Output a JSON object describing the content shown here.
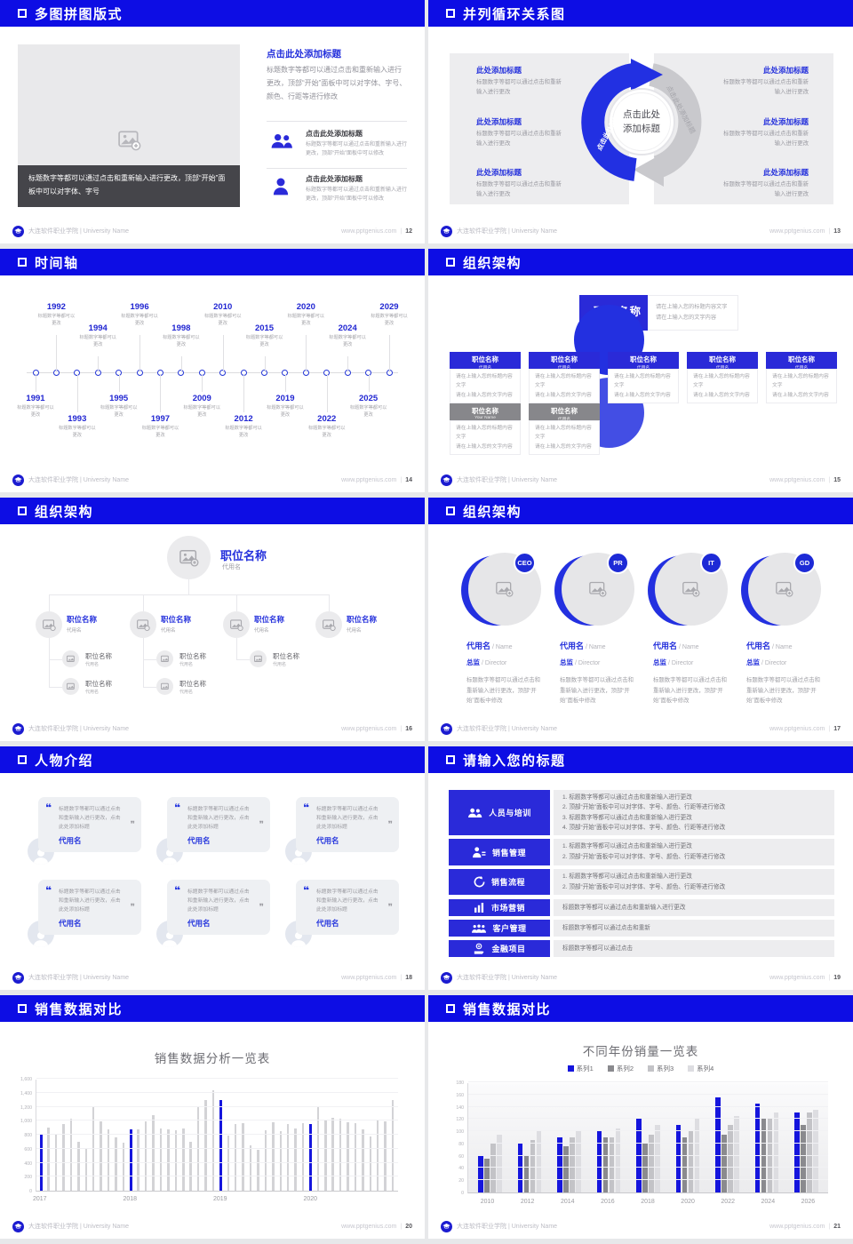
{
  "footer": {
    "brand": "大连软件职业学院 | University Name",
    "site": "www.pptgenius.com",
    "sep": "|"
  },
  "colors": {
    "header_blue": "#0d0de4",
    "accent_blue": "#2430dc",
    "box_blue": "#2a2ad8",
    "chart_blue": "#1515dd"
  },
  "slides": {
    "s12": {
      "title": "多图拼图版式",
      "page": "12",
      "caption": "标题数字等都可以通过点击和重新输入进行更改，顶部“开始”面板中可以对字体、字号",
      "right_title": "点击此处添加标题",
      "right_body": "标题数字等都可以通过点击和重新输入进行更改，顶部“开始”面板中可以对字体、字号、颜色、行距等进行修改",
      "items": [
        {
          "title": "点击此处添加标题",
          "body": "标题数字等都可以通过点击和重新输入进行更改，顶部“开始”面板中可以修改"
        },
        {
          "title": "点击此处添加标题",
          "body": "标题数字等都可以通过点击和重新输入进行更改，顶部“开始”面板中可以修改"
        }
      ]
    },
    "s13": {
      "title": "并列循环关系图",
      "page": "13",
      "center": "点击此处添加标题",
      "arrow_left": "点击此处添加标题",
      "arrow_right": "点击此处添加标题",
      "left_items": [
        {
          "t": "此处添加标题",
          "b": "标题数字等都可以通过点击和重新输入进行更改"
        },
        {
          "t": "此处添加标题",
          "b": "标题数字等都可以通过点击和重新输入进行更改"
        },
        {
          "t": "此处添加标题",
          "b": "标题数字等都可以通过点击和重新输入进行更改"
        }
      ],
      "right_items": [
        {
          "t": "此处添加标题",
          "b": "标题数字等都可以通过点击和重新输入进行更改"
        },
        {
          "t": "此处添加标题",
          "b": "标题数字等都可以通过点击和重新输入进行更改"
        },
        {
          "t": "此处添加标题",
          "b": "标题数字等都可以通过点击和重新输入进行更改"
        }
      ]
    },
    "s14": {
      "title": "时间轴",
      "page": "14",
      "entries": [
        {
          "year": "1991",
          "note": "标题数字等都可以更改"
        },
        {
          "year": "1992",
          "note": "标题数字等都可以更改"
        },
        {
          "year": "1993",
          "note": "标题数字等都可以更改"
        },
        {
          "year": "1994",
          "note": "标题数字等都可以更改"
        },
        {
          "year": "1995",
          "note": "标题数字等都可以更改"
        },
        {
          "year": "1996",
          "note": "标题数字等都可以更改"
        },
        {
          "year": "1997",
          "note": "标题数字等都可以更改"
        },
        {
          "year": "1998",
          "note": "标题数字等都可以更改"
        },
        {
          "year": "2009",
          "note": "标题数字等都可以更改"
        },
        {
          "year": "2010",
          "note": "标题数字等都可以更改"
        },
        {
          "year": "2012",
          "note": "标题数字等都可以更改"
        },
        {
          "year": "2015",
          "note": "标题数字等都可以更改"
        },
        {
          "year": "2019",
          "note": "标题数字等都可以更改"
        },
        {
          "year": "2020",
          "note": "标题数字等都可以更改"
        },
        {
          "year": "2022",
          "note": "标题数字等都可以更改"
        },
        {
          "year": "2024",
          "note": "标题数字等都可以更改"
        },
        {
          "year": "2025",
          "note": "标题数字等都可以更改"
        },
        {
          "year": "2029",
          "note": "标题数字等都可以更改"
        }
      ]
    },
    "s15": {
      "title": "组织架构",
      "page": "15",
      "root": {
        "name": "职位名称",
        "sub": "代用名"
      },
      "note_l1": "请在上输入您的标题内容文字",
      "note_l2": "请在上输入您的文字内容",
      "row1": [
        {
          "name": "职位名称",
          "sub": "代用名"
        },
        {
          "name": "职位名称",
          "sub": "代用名"
        },
        {
          "name": "职位名称",
          "sub": "代用名"
        },
        {
          "name": "职位名称",
          "sub": "代用名"
        },
        {
          "name": "职位名称",
          "sub": "代用名"
        }
      ],
      "row2": [
        {
          "name": "职位名称",
          "sub": "Your Name"
        },
        {
          "name": "职位名称",
          "sub": "代用名"
        }
      ]
    },
    "s16": {
      "title": "组织架构",
      "page": "16",
      "root": {
        "name": "职位名称",
        "sub": "代用名"
      },
      "cols": [
        {
          "name": "职位名称",
          "sub": "代用名",
          "children": [
            {
              "name": "职位名称",
              "sub": "代用名"
            },
            {
              "name": "职位名称",
              "sub": "代用名"
            }
          ]
        },
        {
          "name": "职位名称",
          "sub": "代用名",
          "children": [
            {
              "name": "职位名称",
              "sub": "代用名"
            },
            {
              "name": "职位名称",
              "sub": "代用名"
            }
          ]
        },
        {
          "name": "职位名称",
          "sub": "代用名",
          "children": [
            {
              "name": "职位名称",
              "sub": "代用名"
            }
          ]
        },
        {
          "name": "职位名称",
          "sub": "代用名",
          "children": []
        }
      ]
    },
    "s17": {
      "title": "组织架构",
      "page": "17",
      "members": [
        {
          "badge": "CEO",
          "name": "代用名",
          "name_en": "/ Name",
          "role": "总监",
          "role_en": "/ Director",
          "body": "标题数字等都可以通过点击和重新输入进行更改，顶部“开始”面板中修改"
        },
        {
          "badge": "PR",
          "name": "代用名",
          "name_en": "/ Name",
          "role": "总监",
          "role_en": "/ Director",
          "body": "标题数字等都可以通过点击和重新输入进行更改，顶部“开始”面板中修改"
        },
        {
          "badge": "IT",
          "name": "代用名",
          "name_en": "/ Name",
          "role": "总监",
          "role_en": "/ Director",
          "body": "标题数字等都可以通过点击和重新输入进行更改，顶部“开始”面板中修改"
        },
        {
          "badge": "GD",
          "name": "代用名",
          "name_en": "/ Name",
          "role": "总监",
          "role_en": "/ Director",
          "body": "标题数字等都可以通过点击和重新输入进行更改，顶部“开始”面板中修改"
        }
      ]
    },
    "s18": {
      "title": "人物介绍",
      "page": "18",
      "quote_open": "❝",
      "quote_close": "❞",
      "cards": [
        {
          "quote": "标题数字等都可以通过点击和重新输入进行更改，点击此处添加标题",
          "name": "代用名"
        },
        {
          "quote": "标题数字等都可以通过点击和重新输入进行更改，点击此处添加标题",
          "name": "代用名"
        },
        {
          "quote": "标题数字等都可以通过点击和重新输入进行更改，点击此处添加标题",
          "name": "代用名"
        },
        {
          "quote": "标题数字等都可以通过点击和重新输入进行更改，点击此处添加标题",
          "name": "代用名"
        },
        {
          "quote": "标题数字等都可以通过点击和重新输入进行更改，点击此处添加标题",
          "name": "代用名"
        },
        {
          "quote": "标题数字等都可以通过点击和重新输入进行更改，点击此处添加标题",
          "name": "代用名"
        }
      ]
    },
    "s19": {
      "title": "请输入您的标题",
      "page": "19",
      "rows": [
        {
          "label": "人员与培训",
          "icon": "people-training-icon",
          "lines": [
            "1.  标题数字等都可以通过点击和重新输入进行更改",
            "2.  顶部“开始”面板中可以对字体、字号、颜色、行距等进行修改",
            "3.  标题数字等都可以通过点击和重新输入进行更改",
            "4.  顶部“开始”面板中可以对字体、字号、颜色、行距等进行修改"
          ]
        },
        {
          "label": "销售管理",
          "icon": "sales-management-icon",
          "lines": [
            "1.  标题数字等都可以通过点击和重新输入进行更改",
            "2.  顶部“开始”面板中可以对字体、字号、颜色、行距等进行修改"
          ]
        },
        {
          "label": "销售流程",
          "icon": "sales-process-icon",
          "lines": [
            "1.  标题数字等都可以通过点击和重新输入进行更改",
            "2.  顶部“开始”面板中可以对字体、字号、颜色、行距等进行修改"
          ]
        },
        {
          "label": "市场营销",
          "icon": "market-chart-icon",
          "lines": [
            "标题数字等都可以通过点击和重新输入进行更改"
          ]
        },
        {
          "label": "客户管理",
          "icon": "customers-icon",
          "lines": [
            "标题数字等都可以通过点击和重新"
          ]
        },
        {
          "label": "金融项目",
          "icon": "finance-icon",
          "lines": [
            "标题数字等都可以通过点击"
          ]
        }
      ]
    },
    "s20": {
      "title": "销售数据对比",
      "page": "20"
    },
    "s21": {
      "title": "销售数据对比",
      "page": "21"
    }
  },
  "chart_data": [
    {
      "type": "bar",
      "title": "销售数据分析一览表",
      "xlabel": "",
      "ylabel": "",
      "ylim": [
        0,
        1600
      ],
      "ytick_labels": [
        "0",
        "200",
        "400",
        "600",
        "800",
        "1,000",
        "1,200",
        "1,400",
        "1,600"
      ],
      "grid": true,
      "bar_color": "#d3d3d6",
      "highlight_color": "#1515dd",
      "highlight_rule": "first bar of each year group is blue",
      "groups": [
        {
          "label": "2017",
          "values": [
            800,
            900,
            800,
            950,
            1030,
            700,
            600,
            1200,
            990,
            875,
            760,
            685
          ]
        },
        {
          "label": "2018",
          "values": [
            880,
            880,
            985,
            1085,
            895,
            880,
            865,
            885,
            695,
            1190,
            1290,
            1440
          ]
        },
        {
          "label": "2019",
          "values": [
            1295,
            790,
            950,
            965,
            645,
            585,
            865,
            975,
            845,
            950,
            890,
            965
          ]
        },
        {
          "label": "2020",
          "values": [
            950,
            1190,
            1015,
            1045,
            1025,
            975,
            960,
            880,
            770,
            1005,
            995,
            1300
          ]
        }
      ]
    },
    {
      "type": "bar",
      "title": "不同年份销量一览表",
      "xlabel": "",
      "ylabel": "",
      "ylim": [
        0,
        180
      ],
      "ytick_labels": [
        "0",
        "20",
        "40",
        "60",
        "80",
        "100",
        "120",
        "140",
        "160",
        "180"
      ],
      "grid": true,
      "legend_position": "top",
      "categories": [
        "2010",
        "2012",
        "2014",
        "2016",
        "2018",
        "2020",
        "2022",
        "2024",
        "2026"
      ],
      "series": [
        {
          "name": "系列1",
          "color": "#1515dd",
          "values": [
            60,
            80,
            90,
            100,
            120,
            110,
            155,
            145,
            130
          ]
        },
        {
          "name": "系列2",
          "color": "#8a8a8e",
          "values": [
            55,
            60,
            75,
            90,
            80,
            90,
            95,
            120,
            110
          ]
        },
        {
          "name": "系列3",
          "color": "#c3c3c7",
          "values": [
            80,
            85,
            90,
            90,
            95,
            100,
            110,
            120,
            130
          ]
        },
        {
          "name": "系列4",
          "color": "#dddde1",
          "values": [
            95,
            100,
            100,
            105,
            110,
            120,
            125,
            130,
            135
          ]
        }
      ]
    }
  ]
}
